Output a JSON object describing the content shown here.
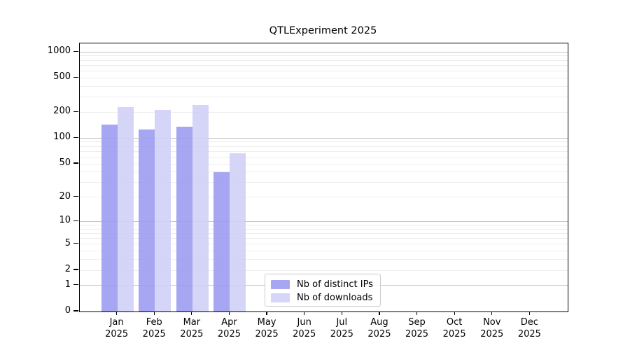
{
  "title": "QTLExperiment 2025",
  "chart_data": {
    "type": "bar",
    "title": "QTLExperiment 2025",
    "categories": [
      "Jan 2025",
      "Feb 2025",
      "Mar 2025",
      "Apr 2025",
      "May 2025",
      "Jun 2025",
      "Jul 2025",
      "Aug 2025",
      "Sep 2025",
      "Oct 2025",
      "Nov 2025",
      "Dec 2025"
    ],
    "x_months": [
      "Jan",
      "Feb",
      "Mar",
      "Apr",
      "May",
      "Jun",
      "Jul",
      "Aug",
      "Sep",
      "Oct",
      "Nov",
      "Dec"
    ],
    "x_year": "2025",
    "series": [
      {
        "name": "Nb of distinct IPs",
        "color": "#9a9af0",
        "values": [
          144,
          127,
          137,
          40,
          0,
          0,
          0,
          0,
          0,
          0,
          0,
          0
        ]
      },
      {
        "name": "Nb of downloads",
        "color": "#cfcff6",
        "values": [
          229,
          213,
          243,
          66,
          0,
          0,
          0,
          0,
          0,
          0,
          0,
          0
        ]
      }
    ],
    "y_ticks": [
      1000,
      500,
      200,
      100,
      50,
      20,
      10,
      5,
      2,
      1,
      0
    ],
    "y_scale": "log1p",
    "ylim": [
      0,
      1258
    ],
    "grid": true,
    "legend_position": "inside-bottom-center",
    "colors": {
      "grid_major": "#c4c4c4",
      "grid_minor": "#ededed",
      "spine": "#000000",
      "legend_border": "#cccccc"
    }
  }
}
